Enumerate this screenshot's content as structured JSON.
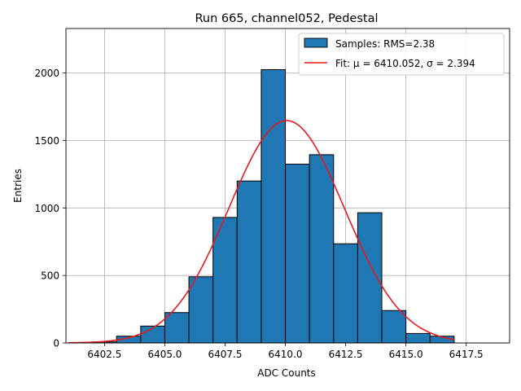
{
  "chart_data": {
    "type": "bar",
    "title": "Run 665, channel052, Pedestal",
    "xlabel": "ADC Counts",
    "ylabel": "Entries",
    "xlim": [
      6400.9,
      6419.3
    ],
    "ylim": [
      0,
      2330
    ],
    "xticks": [
      6402.5,
      6405.0,
      6407.5,
      6410.0,
      6412.5,
      6415.0,
      6417.5
    ],
    "xtick_labels": [
      "6402.5",
      "6405.0",
      "6407.5",
      "6410.0",
      "6412.5",
      "6415.0",
      "6417.5"
    ],
    "yticks": [
      0,
      500,
      1000,
      1500,
      2000
    ],
    "ytick_labels": [
      "0",
      "500",
      "1000",
      "1500",
      "2000"
    ],
    "grid": true,
    "legend_position": "top-right",
    "bins": [
      {
        "left": 6402,
        "right": 6403,
        "value": 8
      },
      {
        "left": 6403,
        "right": 6404,
        "value": 50
      },
      {
        "left": 6404,
        "right": 6405,
        "value": 125
      },
      {
        "left": 6405,
        "right": 6406,
        "value": 225
      },
      {
        "left": 6406,
        "right": 6407,
        "value": 490
      },
      {
        "left": 6407,
        "right": 6408,
        "value": 930
      },
      {
        "left": 6408,
        "right": 6409,
        "value": 1200
      },
      {
        "left": 6409,
        "right": 6410,
        "value": 2025
      },
      {
        "left": 6410,
        "right": 6411,
        "value": 1325
      },
      {
        "left": 6411,
        "right": 6412,
        "value": 1395
      },
      {
        "left": 6412,
        "right": 6413,
        "value": 735
      },
      {
        "left": 6413,
        "right": 6414,
        "value": 965
      },
      {
        "left": 6414,
        "right": 6415,
        "value": 240
      },
      {
        "left": 6415,
        "right": 6416,
        "value": 70
      },
      {
        "left": 6416,
        "right": 6417,
        "value": 50
      }
    ],
    "fit": {
      "mu": 6410.052,
      "sigma": 2.394,
      "amplitude": 1648,
      "x_range": [
        6401.0,
        6417.0
      ]
    },
    "series": [
      {
        "name": "Samples: RMS=2.38",
        "type": "histogram",
        "color": "#1f77b4",
        "edgecolor": "#000000"
      },
      {
        "name": "Fit: μ = 6410.052, σ = 2.394",
        "type": "line",
        "color": "#e8191c"
      }
    ]
  }
}
